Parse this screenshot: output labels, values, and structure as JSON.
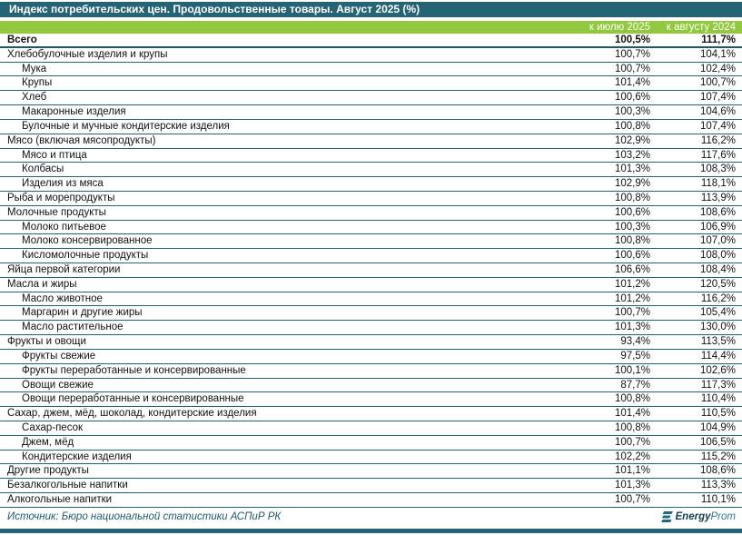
{
  "header": {
    "title": "Индекс потребительских цен. Продовольственные товары. Август 2025 (%)"
  },
  "columns": {
    "mom": "к июлю 2025",
    "yoy": "к августу 2024"
  },
  "footer": {
    "source": "Источник: Бюро национальной статистики АСПиР РК",
    "brand_bold": "Energy",
    "brand_light": "Prom"
  },
  "colors": {
    "teal_bar": "#256474",
    "green_bar": "#92c83e",
    "row_border": "#27616e",
    "source_text": "#1d5a6b",
    "brand_dark": "#143d4d",
    "brand_light": "#2e7d91"
  },
  "chart_data": {
    "type": "table",
    "title": "Индекс потребительских цен. Продовольственные товары. Август 2025 (%)",
    "columns": [
      "к июлю 2025",
      "к августу 2024"
    ],
    "rows": [
      {
        "label": "Всего",
        "mom": "100,5%",
        "yoy": "111,7%",
        "level": 0,
        "bold": true
      },
      {
        "label": "Хлебобулочные изделия и крупы",
        "mom": "100,7%",
        "yoy": "104,1%",
        "level": 0,
        "bold": false
      },
      {
        "label": "Мука",
        "mom": "100,7%",
        "yoy": "102,4%",
        "level": 1,
        "bold": false
      },
      {
        "label": "Крупы",
        "mom": "101,4%",
        "yoy": "100,7%",
        "level": 1,
        "bold": false
      },
      {
        "label": "Хлеб",
        "mom": "100,6%",
        "yoy": "107,4%",
        "level": 1,
        "bold": false
      },
      {
        "label": "Макаронные изделия",
        "mom": "100,3%",
        "yoy": "104,6%",
        "level": 1,
        "bold": false
      },
      {
        "label": "Булочные и мучные кондитерские изделия",
        "mom": "100,8%",
        "yoy": "107,4%",
        "level": 1,
        "bold": false
      },
      {
        "label": "Мясо (включая мясопродукты)",
        "mom": "102,9%",
        "yoy": "116,2%",
        "level": 0,
        "bold": false
      },
      {
        "label": "Мясо и птица",
        "mom": "103,2%",
        "yoy": "117,6%",
        "level": 1,
        "bold": false
      },
      {
        "label": "Колбасы",
        "mom": "101,3%",
        "yoy": "108,3%",
        "level": 1,
        "bold": false
      },
      {
        "label": "Изделия из мяса",
        "mom": "102,9%",
        "yoy": "118,1%",
        "level": 1,
        "bold": false
      },
      {
        "label": "Рыба и морепродукты",
        "mom": "100,8%",
        "yoy": "113,9%",
        "level": 0,
        "bold": false
      },
      {
        "label": "Молочные продукты",
        "mom": "100,6%",
        "yoy": "108,6%",
        "level": 0,
        "bold": false
      },
      {
        "label": "Молоко питьевое",
        "mom": "100,3%",
        "yoy": "106,9%",
        "level": 1,
        "bold": false
      },
      {
        "label": "Молоко консервированное",
        "mom": "100,8%",
        "yoy": "107,0%",
        "level": 1,
        "bold": false
      },
      {
        "label": "Кисломолочные продукты",
        "mom": "100,6%",
        "yoy": "108,0%",
        "level": 1,
        "bold": false
      },
      {
        "label": "Яйца первой категории",
        "mom": "106,6%",
        "yoy": "108,4%",
        "level": 0,
        "bold": false
      },
      {
        "label": "Масла и жиры",
        "mom": "101,2%",
        "yoy": "120,5%",
        "level": 0,
        "bold": false
      },
      {
        "label": "Масло животное",
        "mom": "101,2%",
        "yoy": "116,2%",
        "level": 1,
        "bold": false
      },
      {
        "label": "Маргарин и другие жиры",
        "mom": "100,7%",
        "yoy": "105,4%",
        "level": 1,
        "bold": false
      },
      {
        "label": "Масло растительное",
        "mom": "101,3%",
        "yoy": "130,0%",
        "level": 1,
        "bold": false
      },
      {
        "label": "Фрукты и овощи",
        "mom": "93,4%",
        "yoy": "113,5%",
        "level": 0,
        "bold": false
      },
      {
        "label": "Фрукты свежие",
        "mom": "97,5%",
        "yoy": "114,4%",
        "level": 1,
        "bold": false
      },
      {
        "label": "Фрукты переработанные и консервированные",
        "mom": "100,1%",
        "yoy": "102,6%",
        "level": 1,
        "bold": false
      },
      {
        "label": "Овощи свежие",
        "mom": "87,7%",
        "yoy": "117,3%",
        "level": 1,
        "bold": false
      },
      {
        "label": "Овощи переработанные и консервированные",
        "mom": "100,8%",
        "yoy": "110,4%",
        "level": 1,
        "bold": false
      },
      {
        "label": "Сахар, джем, мёд, шоколад, кондитерские изделия",
        "mom": "101,4%",
        "yoy": "110,5%",
        "level": 0,
        "bold": false
      },
      {
        "label": "Сахар-песок",
        "mom": "100,8%",
        "yoy": "104,9%",
        "level": 1,
        "bold": false
      },
      {
        "label": "Джем, мёд",
        "mom": "100,7%",
        "yoy": "106,5%",
        "level": 1,
        "bold": false
      },
      {
        "label": "Кондитерские изделия",
        "mom": "102,2%",
        "yoy": "115,2%",
        "level": 1,
        "bold": false
      },
      {
        "label": "Другие продукты",
        "mom": "101,1%",
        "yoy": "108,6%",
        "level": 0,
        "bold": false
      },
      {
        "label": "Безалкогольные напитки",
        "mom": "101,3%",
        "yoy": "113,3%",
        "level": 0,
        "bold": false
      },
      {
        "label": "Алкогольные напитки",
        "mom": "100,7%",
        "yoy": "110,1%",
        "level": 0,
        "bold": false
      }
    ]
  }
}
